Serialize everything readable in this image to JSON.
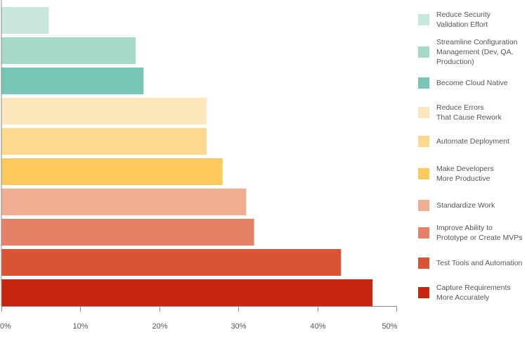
{
  "chart_data": {
    "type": "bar",
    "orientation": "horizontal",
    "categories": [
      "Reduce Security\nValidation Effort",
      "Streamline Configuration\nManagement (Dev, QA,\nProduction)",
      "Become Cloud Native",
      "Reduce Errors\nThat Cause Rework",
      "Automate Deployment",
      "Make Developers\nMore Productive",
      "Standardize Work",
      "Improve Ability to\nPrototype or Create MVPs",
      "Test Tools and Automation",
      "Capture Requirements\nMore Accurately"
    ],
    "values": [
      6,
      17,
      18,
      26,
      26,
      28,
      31,
      32,
      43,
      47
    ],
    "colors": [
      "#c8e8dc",
      "#a6d8c9",
      "#79c5b5",
      "#fde6bb",
      "#fdd98f",
      "#fdc95d",
      "#efae92",
      "#e48166",
      "#d75437",
      "#c82412"
    ],
    "xlim": [
      0,
      50
    ],
    "xticks": [
      0,
      10,
      20,
      30,
      40,
      50
    ],
    "xtick_labels": [
      "0%",
      "10%",
      "20%",
      "30%",
      "40%",
      "50%"
    ],
    "legend_position": "right",
    "grid": false
  }
}
